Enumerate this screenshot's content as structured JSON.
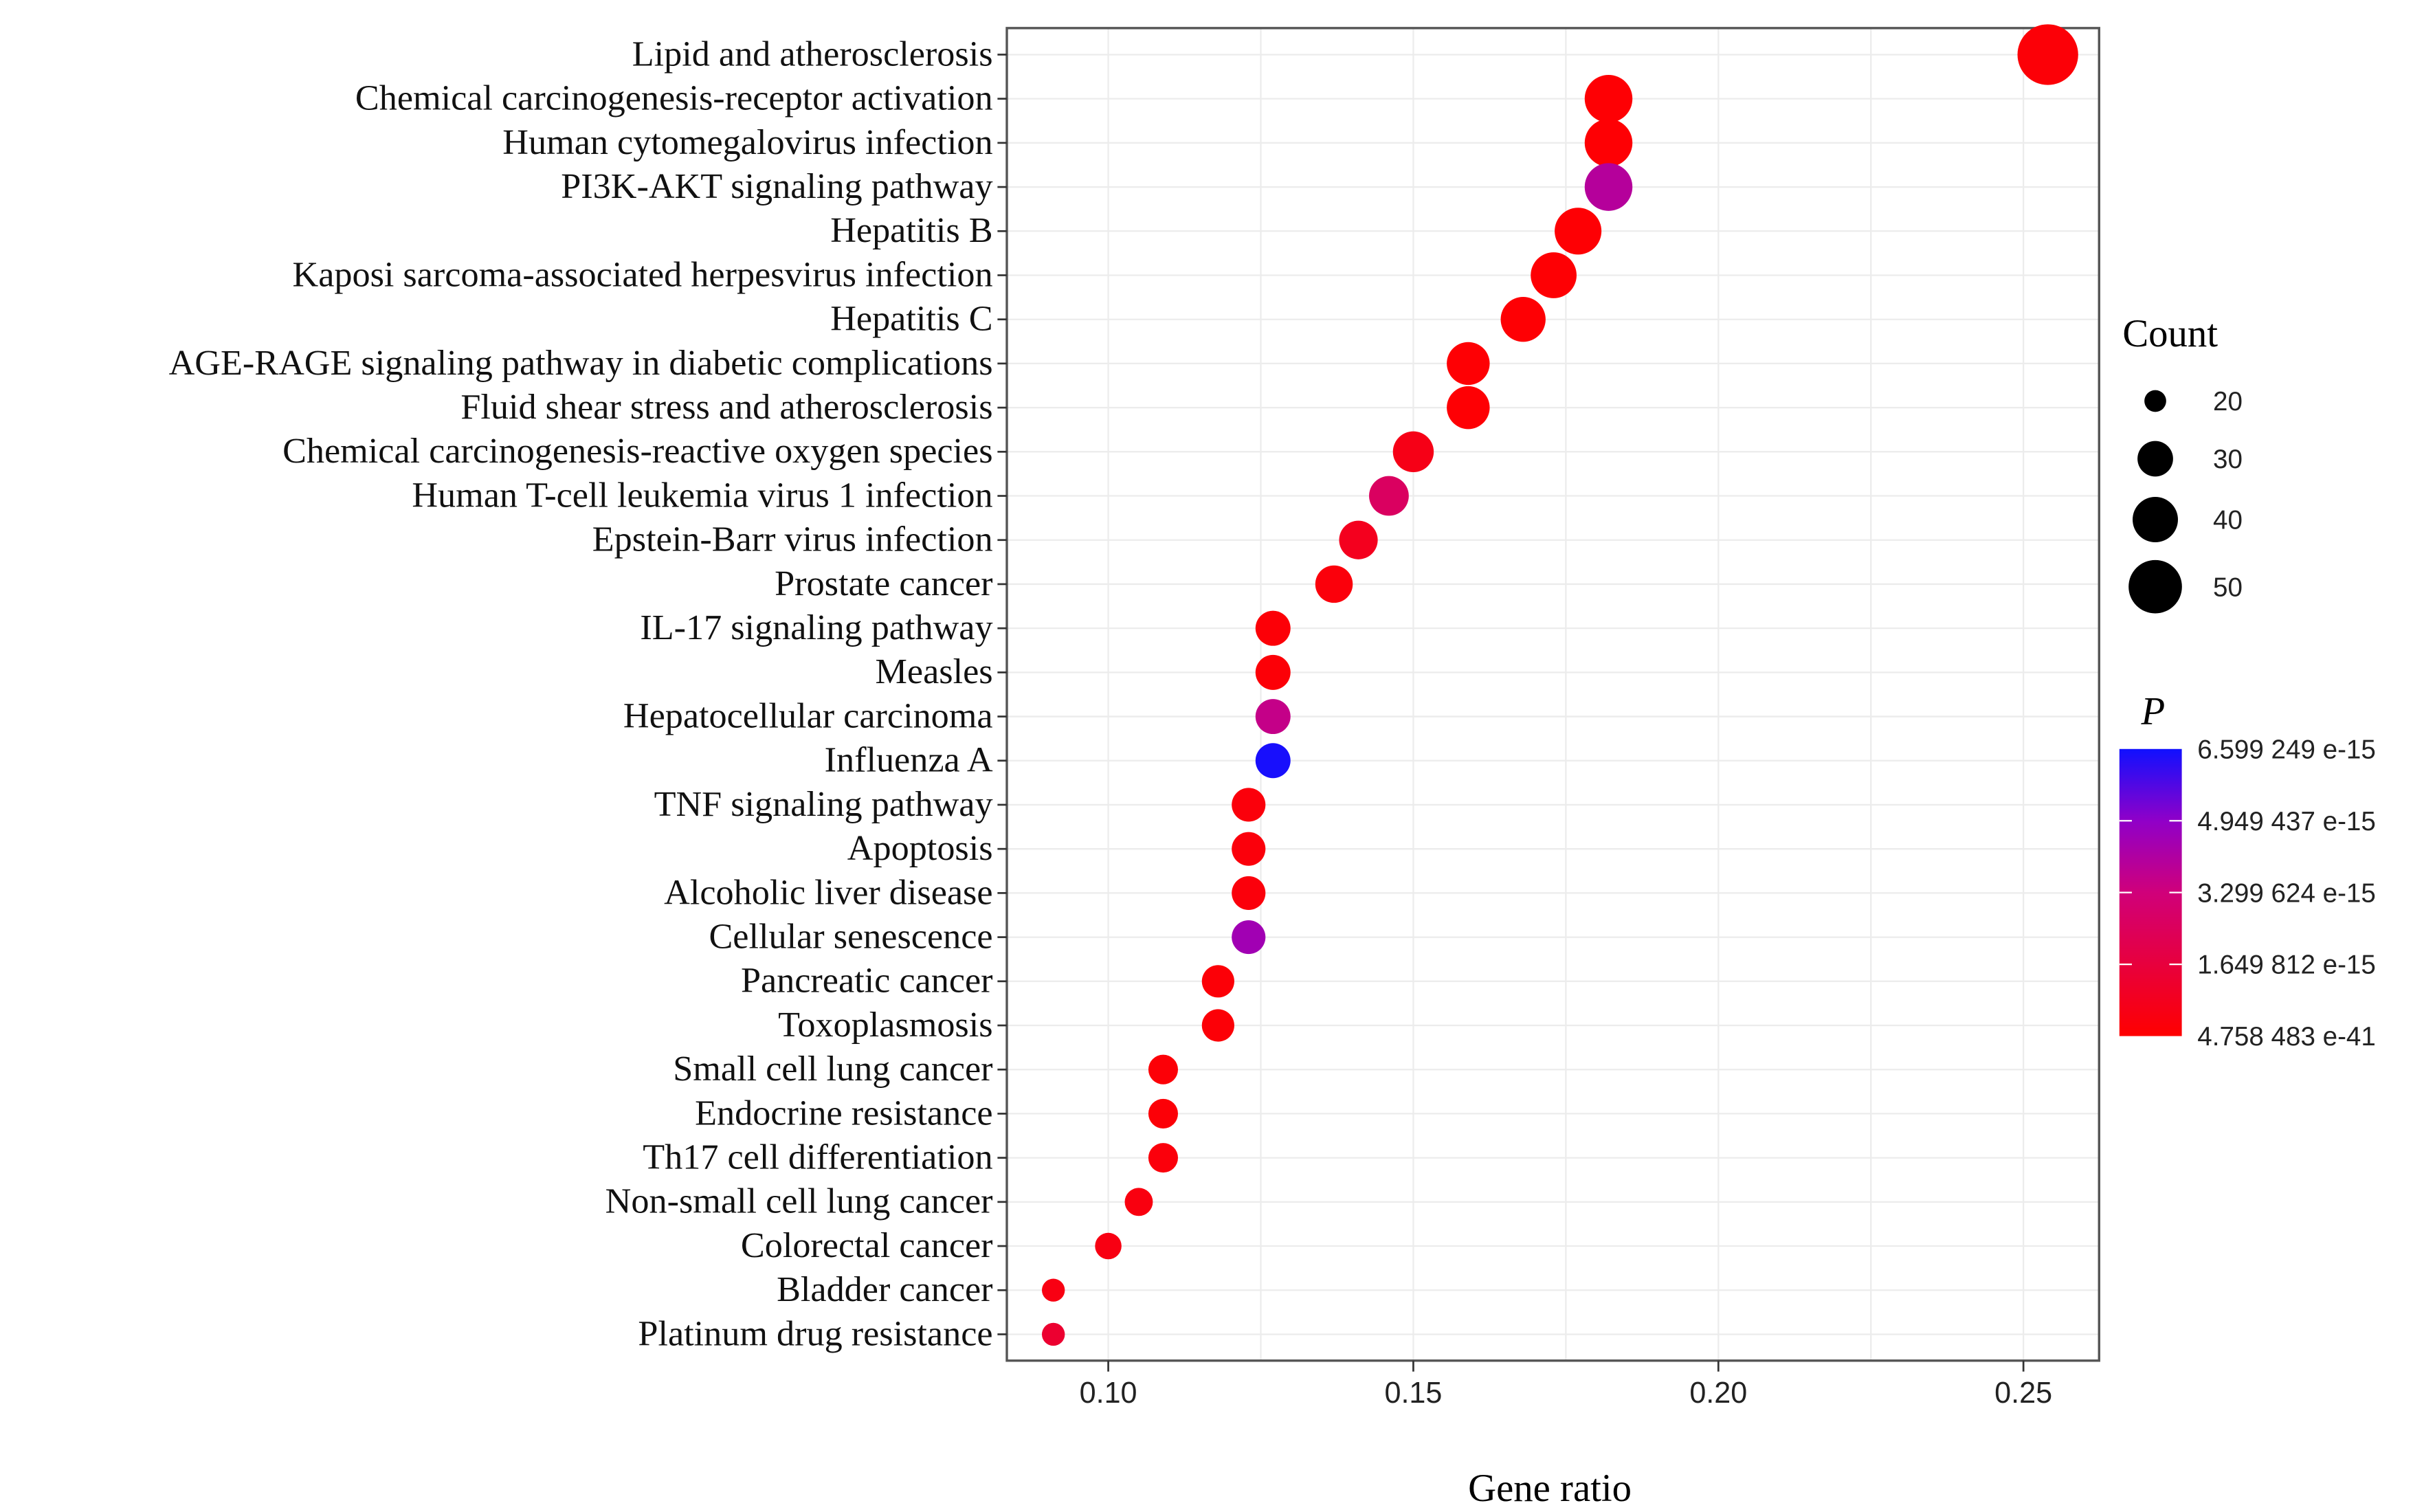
{
  "chart_data": {
    "type": "scatter",
    "title": "",
    "xlabel": "Gene ratio",
    "ylabel": "",
    "xlim": [
      0.083,
      0.262
    ],
    "x_ticks": [
      "0.10",
      "0.15",
      "0.20",
      "0.25"
    ],
    "x_tick_values": [
      0.1,
      0.15,
      0.2,
      0.25
    ],
    "grid": true,
    "legend_placement": "right",
    "size_legend": {
      "title": "Count",
      "values": [
        20,
        30,
        40,
        50
      ],
      "labels": [
        "20",
        "30",
        "40",
        "50"
      ]
    },
    "color_legend": {
      "title": "P",
      "labels": [
        "6.599 249 e-15",
        "4.949 437 e-15",
        "3.299 624 e-15",
        "1.649 812 e-15",
        "4.758 483 e-41"
      ],
      "values": [
        6.599249e-15,
        4.949437e-15,
        3.299624e-15,
        1.649812e-15,
        4.758483e-41
      ],
      "low_color": "#ff0000",
      "mid_color": "#c0008a",
      "high_color": "#0000ff"
    },
    "categories": [
      "Lipid and atherosclerosis",
      "Chemical carcinogenesis-receptor activation",
      "Human cytomegalovirus infection",
      "PI3K-AKT signaling pathway",
      "Hepatitis B",
      "Kaposi sarcoma-associated herpesvirus infection",
      "Hepatitis C",
      "AGE-RAGE signaling pathway in diabetic complications",
      "Fluid shear stress and atherosclerosis",
      "Chemical carcinogenesis-reactive oxygen species",
      "Human T-cell leukemia virus 1 infection",
      "Epstein-Barr virus infection",
      "Prostate cancer",
      "IL-17 signaling pathway",
      "Measles",
      "Hepatocellular carcinoma",
      "Influenza A",
      "TNF signaling pathway",
      "Apoptosis",
      "Alcoholic liver disease",
      "Cellular senescence",
      "Pancreatic cancer",
      "Toxoplasmosis",
      "Small cell lung cancer",
      "Endocrine resistance",
      "Th17 cell differentiation",
      "Non-small cell lung cancer",
      "Colorectal cancer",
      "Bladder cancer",
      "Platinum drug resistance"
    ],
    "gene_ratio": [
      0.254,
      0.182,
      0.182,
      0.182,
      0.177,
      0.173,
      0.168,
      0.159,
      0.159,
      0.15,
      0.146,
      0.141,
      0.137,
      0.127,
      0.127,
      0.127,
      0.127,
      0.123,
      0.123,
      0.123,
      0.123,
      0.118,
      0.118,
      0.109,
      0.109,
      0.109,
      0.105,
      0.1,
      0.091,
      0.091
    ],
    "count": [
      56,
      40,
      40,
      40,
      39,
      38,
      37,
      35,
      35,
      33,
      32,
      31,
      30,
      28,
      28,
      28,
      28,
      27,
      27,
      27,
      27,
      26,
      26,
      24,
      24,
      24,
      23,
      22,
      20,
      20
    ],
    "p_value": [
      2e-16,
      1e-16,
      1e-16,
      4e-15,
      1e-16,
      1e-16,
      1e-16,
      1e-16,
      1e-16,
      6e-16,
      2.6e-15,
      8e-16,
      3e-16,
      2e-16,
      2e-16,
      3.6e-15,
      6.5e-15,
      3e-16,
      3e-16,
      3e-16,
      4.5e-15,
      2e-16,
      2e-16,
      2e-16,
      2e-16,
      3e-16,
      4e-16,
      5e-16,
      5e-16,
      1.3e-15
    ]
  }
}
